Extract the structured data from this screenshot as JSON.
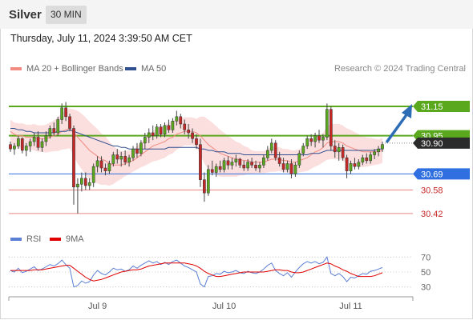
{
  "header": {
    "symbol": "Silver",
    "timeframe": "30 MIN"
  },
  "datetime": "Thursday, July 11, 2024 3:39:50 AM CET",
  "legend": {
    "ma20": {
      "label": "MA 20 + Bollinger Bands",
      "color": "#f28b82"
    },
    "ma50": {
      "label": "MA 50",
      "color": "#2f4f8f"
    },
    "credit": "Research © 2024 Trading Central"
  },
  "rsi_legend": {
    "rsi": {
      "label": "RSI",
      "color": "#5b7fd4"
    },
    "ma9": {
      "label": "9MA",
      "color": "#e00000"
    }
  },
  "chart_data": [
    {
      "type": "candlestick",
      "x_labels": [
        "Jul 9",
        "Jul 10",
        "Jul 11"
      ],
      "ylim": [
        30.37,
        31.33
      ],
      "levels": [
        {
          "value": 31.15,
          "label": "31.15",
          "kind": "resistance",
          "color": "#5aa81e"
        },
        {
          "value": 30.95,
          "label": "30.95",
          "kind": "resistance",
          "color": "#5aa81e"
        },
        {
          "value": 30.9,
          "label": "30.90",
          "kind": "last-price",
          "color": "#333333"
        },
        {
          "value": 30.69,
          "label": "30.69",
          "kind": "pivot",
          "color": "#2f6fe0"
        },
        {
          "value": 30.58,
          "label": "30.58",
          "kind": "support",
          "color": "#e05050"
        },
        {
          "value": 30.42,
          "label": "30.42",
          "kind": "support",
          "color": "#e05050"
        }
      ],
      "forecast_arrow": {
        "from": 30.9,
        "to": 31.15
      },
      "up_color": "#5aa81e",
      "down_color": "#c62828",
      "ohlc": [
        [
          30.89,
          30.91,
          30.84,
          30.86
        ],
        [
          30.86,
          30.9,
          30.82,
          30.88
        ],
        [
          30.88,
          30.95,
          30.86,
          30.93
        ],
        [
          30.93,
          30.94,
          30.83,
          30.85
        ],
        [
          30.85,
          30.9,
          30.81,
          30.88
        ],
        [
          30.88,
          30.93,
          30.84,
          30.91
        ],
        [
          30.91,
          30.97,
          30.88,
          30.94
        ],
        [
          30.94,
          30.98,
          30.85,
          30.87
        ],
        [
          30.87,
          30.93,
          30.84,
          30.91
        ],
        [
          30.91,
          30.98,
          30.88,
          30.95
        ],
        [
          30.95,
          31.02,
          30.93,
          31.0
        ],
        [
          31.0,
          31.04,
          30.95,
          30.97
        ],
        [
          30.97,
          31.08,
          30.95,
          31.06
        ],
        [
          31.06,
          31.17,
          31.03,
          31.14
        ],
        [
          31.14,
          31.18,
          31.05,
          31.08
        ],
        [
          31.08,
          31.1,
          30.98,
          31.0
        ],
        [
          31.0,
          31.02,
          30.48,
          30.6
        ],
        [
          30.6,
          30.66,
          30.42,
          30.62
        ],
        [
          30.62,
          30.7,
          30.57,
          30.66
        ],
        [
          30.66,
          30.7,
          30.58,
          30.61
        ],
        [
          30.61,
          30.66,
          30.58,
          30.63
        ],
        [
          30.63,
          30.76,
          30.6,
          30.74
        ],
        [
          30.74,
          30.81,
          30.7,
          30.78
        ],
        [
          30.78,
          30.81,
          30.7,
          30.73
        ],
        [
          30.73,
          30.76,
          30.68,
          30.71
        ],
        [
          30.71,
          30.78,
          30.69,
          30.76
        ],
        [
          30.76,
          30.84,
          30.74,
          30.82
        ],
        [
          30.82,
          30.86,
          30.76,
          30.79
        ],
        [
          30.79,
          30.84,
          30.74,
          30.81
        ],
        [
          30.81,
          30.85,
          30.75,
          30.77
        ],
        [
          30.77,
          30.82,
          30.74,
          30.8
        ],
        [
          30.8,
          30.88,
          30.78,
          30.86
        ],
        [
          30.86,
          30.9,
          30.8,
          30.83
        ],
        [
          30.83,
          30.92,
          30.81,
          30.9
        ],
        [
          30.9,
          30.97,
          30.86,
          30.94
        ],
        [
          30.94,
          31.0,
          30.9,
          30.97
        ],
        [
          30.97,
          31.02,
          30.92,
          30.95
        ],
        [
          30.95,
          31.03,
          30.93,
          31.01
        ],
        [
          31.01,
          31.03,
          30.94,
          30.96
        ],
        [
          30.96,
          31.04,
          30.94,
          31.02
        ],
        [
          31.02,
          31.06,
          30.97,
          30.99
        ],
        [
          30.99,
          31.07,
          30.97,
          31.05
        ],
        [
          31.05,
          31.12,
          31.02,
          31.08
        ],
        [
          31.08,
          31.1,
          31.0,
          31.03
        ],
        [
          31.03,
          31.06,
          30.96,
          30.99
        ],
        [
          30.99,
          31.03,
          30.93,
          30.97
        ],
        [
          30.97,
          31.0,
          30.9,
          30.93
        ],
        [
          30.93,
          30.96,
          30.86,
          30.89
        ],
        [
          30.89,
          30.93,
          30.6,
          30.65
        ],
        [
          30.65,
          30.7,
          30.5,
          30.56
        ],
        [
          30.56,
          30.75,
          30.54,
          30.72
        ],
        [
          30.72,
          30.78,
          30.68,
          30.7
        ],
        [
          30.7,
          30.76,
          30.67,
          30.74
        ],
        [
          30.74,
          30.78,
          30.7,
          30.72
        ],
        [
          30.72,
          30.8,
          30.7,
          30.78
        ],
        [
          30.78,
          30.81,
          30.72,
          30.75
        ],
        [
          30.75,
          30.8,
          30.72,
          30.77
        ],
        [
          30.77,
          30.82,
          30.74,
          30.79
        ],
        [
          30.79,
          30.8,
          30.73,
          30.75
        ],
        [
          30.75,
          30.78,
          30.71,
          30.73
        ],
        [
          30.73,
          30.79,
          30.71,
          30.77
        ],
        [
          30.77,
          30.8,
          30.73,
          30.75
        ],
        [
          30.75,
          30.78,
          30.71,
          30.73
        ],
        [
          30.73,
          30.77,
          30.7,
          30.75
        ],
        [
          30.75,
          30.82,
          30.73,
          30.8
        ],
        [
          30.8,
          30.88,
          30.78,
          30.85
        ],
        [
          30.85,
          30.93,
          30.83,
          30.9
        ],
        [
          30.9,
          30.92,
          30.78,
          30.8
        ],
        [
          30.8,
          30.84,
          30.74,
          30.76
        ],
        [
          30.76,
          30.8,
          30.7,
          30.72
        ],
        [
          30.72,
          30.78,
          30.7,
          30.76
        ],
        [
          30.76,
          30.79,
          30.66,
          30.69
        ],
        [
          30.69,
          30.77,
          30.67,
          30.75
        ],
        [
          30.75,
          30.85,
          30.73,
          30.83
        ],
        [
          30.83,
          30.9,
          30.81,
          30.88
        ],
        [
          30.88,
          30.95,
          30.86,
          30.93
        ],
        [
          30.93,
          30.96,
          30.88,
          30.91
        ],
        [
          30.91,
          30.97,
          30.87,
          30.95
        ],
        [
          30.95,
          30.99,
          30.9,
          30.92
        ],
        [
          30.92,
          30.96,
          30.87,
          30.94
        ],
        [
          30.94,
          31.17,
          30.92,
          31.13
        ],
        [
          31.13,
          31.15,
          30.85,
          30.88
        ],
        [
          30.88,
          30.92,
          30.8,
          30.84
        ],
        [
          30.84,
          30.9,
          30.78,
          30.87
        ],
        [
          30.87,
          30.89,
          30.78,
          30.8
        ],
        [
          30.8,
          30.82,
          30.66,
          30.71
        ],
        [
          30.71,
          30.78,
          30.69,
          30.76
        ],
        [
          30.76,
          30.8,
          30.72,
          30.74
        ],
        [
          30.74,
          30.79,
          30.72,
          30.77
        ],
        [
          30.77,
          30.82,
          30.75,
          30.8
        ],
        [
          30.8,
          30.83,
          30.76,
          30.78
        ],
        [
          30.78,
          30.84,
          30.76,
          30.82
        ],
        [
          30.82,
          30.86,
          30.79,
          30.84
        ],
        [
          30.84,
          30.88,
          30.81,
          30.86
        ],
        [
          30.86,
          30.91,
          30.84,
          30.89
        ]
      ],
      "ma20": [
        30.98,
        30.96,
        30.95,
        30.95,
        30.94,
        30.94,
        30.94,
        30.93,
        30.93,
        30.93,
        30.94,
        30.95,
        30.96,
        30.98,
        30.99,
        31.0,
        30.97,
        30.94,
        30.91,
        30.88,
        30.85,
        30.83,
        30.81,
        30.79,
        30.78,
        30.76,
        30.75,
        30.75,
        30.75,
        30.76,
        30.77,
        30.78,
        30.8,
        30.82,
        30.84,
        30.86,
        30.88,
        30.89,
        30.9,
        30.91,
        30.93,
        30.94,
        30.96,
        30.97,
        30.98,
        30.98,
        30.98,
        30.97,
        30.95,
        30.92,
        30.89,
        30.87,
        30.85,
        30.83,
        30.82,
        30.81,
        30.8,
        30.79,
        30.79,
        30.78,
        30.78,
        30.77,
        30.77,
        30.77,
        30.77,
        30.78,
        30.79,
        30.79,
        30.79,
        30.78,
        30.78,
        30.77,
        30.77,
        30.78,
        30.79,
        30.8,
        30.82,
        30.84,
        30.85,
        30.87,
        30.9,
        30.91,
        30.91,
        30.91,
        30.9,
        30.88,
        30.87,
        30.86,
        30.85,
        30.84,
        30.84,
        30.84,
        30.84,
        30.84,
        30.85
      ],
      "bb_width": [
        0.16,
        0.16,
        0.17,
        0.17,
        0.17,
        0.17,
        0.18,
        0.18,
        0.18,
        0.19,
        0.2,
        0.21,
        0.23,
        0.25,
        0.26,
        0.27,
        0.32,
        0.36,
        0.38,
        0.39,
        0.39,
        0.38,
        0.37,
        0.35,
        0.33,
        0.3,
        0.26,
        0.22,
        0.19,
        0.17,
        0.16,
        0.15,
        0.16,
        0.17,
        0.19,
        0.2,
        0.21,
        0.22,
        0.22,
        0.22,
        0.22,
        0.22,
        0.21,
        0.2,
        0.19,
        0.19,
        0.19,
        0.19,
        0.26,
        0.32,
        0.34,
        0.34,
        0.33,
        0.32,
        0.3,
        0.28,
        0.26,
        0.24,
        0.22,
        0.2,
        0.18,
        0.16,
        0.15,
        0.15,
        0.15,
        0.16,
        0.17,
        0.17,
        0.16,
        0.16,
        0.16,
        0.16,
        0.16,
        0.16,
        0.17,
        0.18,
        0.19,
        0.2,
        0.2,
        0.2,
        0.23,
        0.24,
        0.24,
        0.24,
        0.24,
        0.24,
        0.24,
        0.23,
        0.22,
        0.21,
        0.2,
        0.19,
        0.18,
        0.17,
        0.17
      ],
      "ma50": [
        31.0,
        31.0,
        30.99,
        30.99,
        30.98,
        30.98,
        30.97,
        30.97,
        30.97,
        30.97,
        30.97,
        30.97,
        30.98,
        30.98,
        30.98,
        30.99,
        30.98,
        30.97,
        30.96,
        30.95,
        30.94,
        30.93,
        30.92,
        30.91,
        30.9,
        30.89,
        30.88,
        30.88,
        30.87,
        30.87,
        30.86,
        30.86,
        30.86,
        30.86,
        30.86,
        30.86,
        30.86,
        30.86,
        30.86,
        30.86,
        30.87,
        30.87,
        30.87,
        30.87,
        30.87,
        30.87,
        30.87,
        30.87,
        30.86,
        30.86,
        30.85,
        30.85,
        30.84,
        30.84,
        30.84,
        30.83,
        30.83,
        30.83,
        30.83,
        30.82,
        30.82,
        30.82,
        30.82,
        30.82,
        30.82,
        30.82,
        30.82,
        30.82,
        30.82,
        30.82,
        30.82,
        30.82,
        30.82,
        30.82,
        30.82,
        30.82,
        30.83,
        30.83,
        30.83,
        30.84,
        30.85,
        30.85,
        30.85,
        30.85,
        30.85,
        30.85,
        30.85,
        30.85,
        30.85,
        30.85,
        30.85,
        30.85,
        30.85,
        30.86,
        30.86
      ]
    },
    {
      "type": "line",
      "ylim": [
        20,
        80
      ],
      "y_ticks": [
        70,
        50,
        30
      ],
      "series": [
        {
          "name": "RSI",
          "values": [
            52,
            50,
            55,
            49,
            51,
            54,
            57,
            52,
            54,
            57,
            60,
            58,
            61,
            66,
            60,
            55,
            30,
            32,
            38,
            35,
            37,
            46,
            52,
            48,
            46,
            50,
            55,
            53,
            54,
            51,
            53,
            58,
            55,
            59,
            62,
            65,
            62,
            64,
            60,
            63,
            60,
            64,
            66,
            62,
            58,
            56,
            53,
            50,
            34,
            30,
            44,
            45,
            48,
            47,
            51,
            49,
            50,
            52,
            49,
            48,
            51,
            49,
            48,
            50,
            54,
            59,
            62,
            52,
            48,
            45,
            49,
            43,
            50,
            56,
            61,
            64,
            62,
            64,
            61,
            63,
            70,
            48,
            45,
            48,
            44,
            37,
            43,
            42,
            45,
            48,
            47,
            51,
            52,
            54,
            56
          ]
        },
        {
          "name": "9MA",
          "values": [
            52,
            52,
            52,
            52,
            52,
            52,
            53,
            53,
            53,
            54,
            55,
            56,
            57,
            58,
            59,
            59,
            55,
            51,
            47,
            43,
            40,
            38,
            39,
            40,
            42,
            44,
            46,
            48,
            50,
            51,
            52,
            53,
            53,
            54,
            56,
            58,
            59,
            60,
            61,
            62,
            62,
            62,
            62,
            62,
            62,
            61,
            60,
            58,
            55,
            51,
            48,
            46,
            44,
            44,
            45,
            46,
            47,
            48,
            49,
            50,
            50,
            50,
            50,
            50,
            50,
            51,
            52,
            53,
            53,
            52,
            52,
            50,
            49,
            49,
            50,
            52,
            54,
            56,
            58,
            60,
            62,
            61,
            58,
            56,
            53,
            51,
            48,
            46,
            44,
            44,
            44,
            44,
            45,
            47,
            49
          ]
        }
      ]
    }
  ]
}
